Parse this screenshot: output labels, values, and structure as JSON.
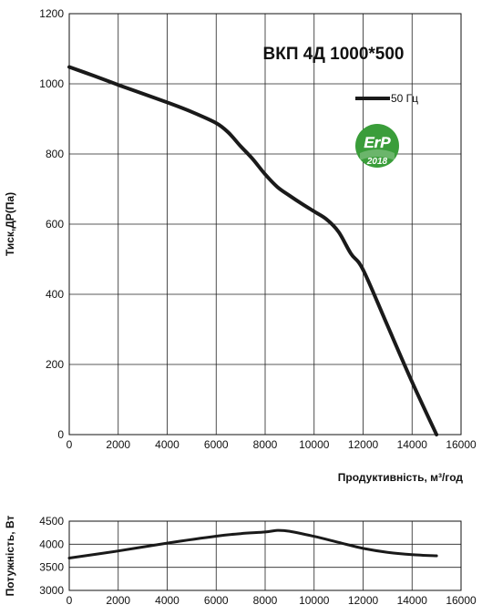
{
  "chart_data": [
    {
      "type": "line",
      "title": "ВКП 4Д 1000*500",
      "xlabel": "Продуктивність, м³/год",
      "ylabel": "Тиск,ДР(Па)",
      "xlim": [
        0,
        16000
      ],
      "ylim": [
        0,
        1200
      ],
      "x_ticks": [
        "0",
        "2000",
        "4000",
        "6000",
        "8000",
        "10000",
        "12000",
        "14000",
        "16000"
      ],
      "y_ticks": [
        "0",
        "200",
        "400",
        "600",
        "800",
        "1000",
        "1200"
      ],
      "grid": true,
      "legend_position": "top-right",
      "series": [
        {
          "name": "50 Гц",
          "color": "#1a1a1a",
          "x": [
            0,
            1000,
            2000,
            3000,
            4000,
            5000,
            6000,
            6500,
            7000,
            7500,
            8000,
            8500,
            9000,
            9500,
            10000,
            10500,
            11000,
            11500,
            12000,
            13000,
            14000,
            15000
          ],
          "y": [
            1048,
            1023,
            997,
            972,
            947,
            920,
            888,
            861,
            822,
            785,
            742,
            706,
            681,
            658,
            636,
            614,
            578,
            516,
            470,
            310,
            150,
            0
          ]
        }
      ],
      "badge": {
        "text_top": "ErP",
        "text_bottom": "2018",
        "color": "#3a9d3a"
      }
    },
    {
      "type": "line",
      "title": "",
      "xlabel": "",
      "ylabel": "Потужність, Вт",
      "xlim": [
        0,
        16000
      ],
      "ylim": [
        3000,
        4500
      ],
      "x_ticks": [
        "0",
        "2000",
        "4000",
        "6000",
        "8000",
        "10000",
        "12000",
        "14000",
        "16000"
      ],
      "y_ticks": [
        "3000",
        "3500",
        "4000",
        "4500"
      ],
      "grid": true,
      "series": [
        {
          "color": "#1a1a1a",
          "x": [
            0,
            2000,
            4000,
            6000,
            7000,
            8000,
            8500,
            9000,
            10000,
            11000,
            12000,
            13000,
            14000,
            15000
          ],
          "y": [
            3700,
            3855,
            4025,
            4175,
            4230,
            4265,
            4300,
            4280,
            4170,
            4040,
            3910,
            3825,
            3775,
            3750
          ]
        }
      ]
    }
  ]
}
